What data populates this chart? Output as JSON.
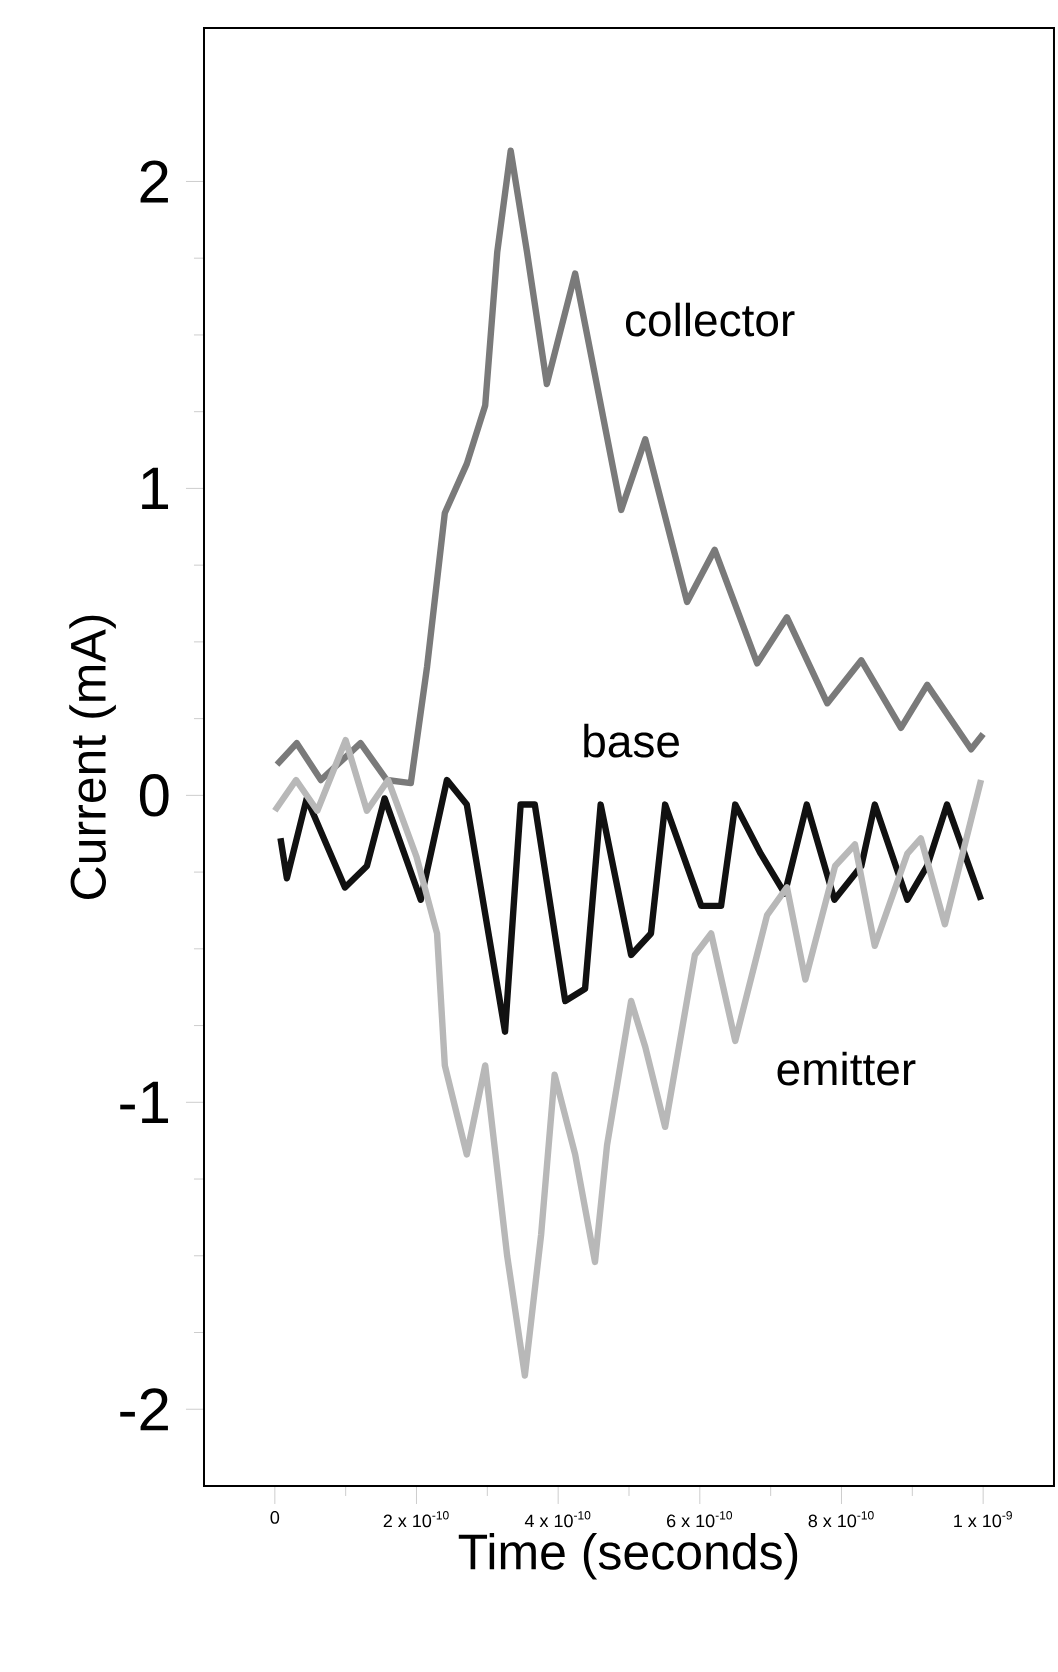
{
  "chart_data": {
    "type": "line",
    "xlabel": "Time (seconds)",
    "ylabel": "Current (mA)",
    "xlim": [
      -1e-10,
      1.1e-09
    ],
    "ylim": [
      -2.25,
      2.5
    ],
    "xticks": [
      0,
      {
        "value": 2e-10,
        "label": "2 x 10$^{-10}$"
      },
      {
        "value": 4e-10,
        "label": "4 x 10$^{-10}$"
      },
      {
        "value": 6e-10,
        "label": "6 x 10$^{-10}$"
      },
      {
        "value": 8e-10,
        "label": "8 x 10$^{-10}$"
      },
      {
        "value": 1e-09,
        "label": "1 x 10$^{-9}$"
      }
    ],
    "yticks": [
      -2,
      -1,
      0,
      1,
      2
    ],
    "grid": false,
    "marker": "none",
    "line_style": "solid",
    "series": [
      {
        "name": "collector",
        "color": "#7a7a7a",
        "x": [
          3e-12,
          3.1e-11,
          6.5e-11,
          1.21e-10,
          1.58e-10,
          1.92e-10,
          2.15e-10,
          2.4e-10,
          2.71e-10,
          2.97e-10,
          3.14e-10,
          3.33e-10,
          3.56e-10,
          3.84e-10,
          4.24e-10,
          4.46e-10,
          4.89e-10,
          5.23e-10,
          5.82e-10,
          6.21e-10,
          6.81e-10,
          7.23e-10,
          7.8e-10,
          8.28e-10,
          8.84e-10,
          9.21e-10,
          9.83e-10,
          1e-09
        ],
        "values": [
          0.1,
          0.17,
          0.05,
          0.17,
          0.05,
          0.04,
          0.42,
          0.92,
          1.08,
          1.27,
          1.77,
          2.1,
          1.77,
          1.34,
          1.7,
          1.44,
          0.93,
          1.16,
          0.63,
          0.8,
          0.43,
          0.58,
          0.3,
          0.44,
          0.22,
          0.36,
          0.15,
          0.2
        ]
      },
      {
        "name": "base",
        "color": "#111111",
        "x": [
          8e-12,
          1.7e-11,
          4.5e-11,
          9.9e-11,
          1.3e-10,
          1.55e-10,
          2.06e-10,
          2.43e-10,
          2.71e-10,
          3.25e-10,
          3.47e-10,
          3.67e-10,
          4.1e-10,
          4.38e-10,
          4.6e-10,
          5.03e-10,
          5.31e-10,
          5.51e-10,
          6.02e-10,
          6.3e-10,
          6.5e-10,
          6.86e-10,
          7.2e-10,
          7.51e-10,
          7.9e-10,
          8.28e-10,
          8.47e-10,
          8.93e-10,
          9.21e-10,
          9.49e-10,
          9.97e-10
        ],
        "values": [
          -0.14,
          -0.27,
          -0.01,
          -0.3,
          -0.23,
          -0.01,
          -0.34,
          0.05,
          -0.03,
          -0.77,
          -0.03,
          -0.03,
          -0.67,
          -0.63,
          -0.03,
          -0.52,
          -0.45,
          -0.03,
          -0.36,
          -0.36,
          -0.03,
          -0.19,
          -0.32,
          -0.03,
          -0.34,
          -0.23,
          -0.03,
          -0.34,
          -0.23,
          -0.03,
          -0.34
        ]
      },
      {
        "name": "emitter",
        "color": "#b8b8b8",
        "x": [
          0,
          3e-11,
          6e-11,
          1e-10,
          1.3e-10,
          1.6e-10,
          2e-10,
          2.29e-10,
          2.4e-10,
          2.71e-10,
          2.97e-10,
          3.28e-10,
          3.53e-10,
          3.76e-10,
          3.95e-10,
          4.24e-10,
          4.52e-10,
          4.69e-10,
          5.03e-10,
          5.23e-10,
          5.51e-10,
          5.93e-10,
          6.16e-10,
          6.5e-10,
          6.95e-10,
          7.23e-10,
          7.49e-10,
          7.91e-10,
          8.19e-10,
          8.47e-10,
          8.93e-10,
          9.12e-10,
          9.46e-10,
          9.97e-10
        ],
        "values": [
          -0.05,
          0.05,
          -0.05,
          0.18,
          -0.05,
          0.05,
          -0.2,
          -0.45,
          -0.88,
          -1.17,
          -0.88,
          -1.5,
          -1.89,
          -1.43,
          -0.91,
          -1.17,
          -1.52,
          -1.14,
          -0.67,
          -0.82,
          -1.08,
          -0.52,
          -0.45,
          -0.8,
          -0.39,
          -0.3,
          -0.6,
          -0.23,
          -0.16,
          -0.49,
          -0.19,
          -0.14,
          -0.42,
          0.05
        ]
      }
    ]
  }
}
